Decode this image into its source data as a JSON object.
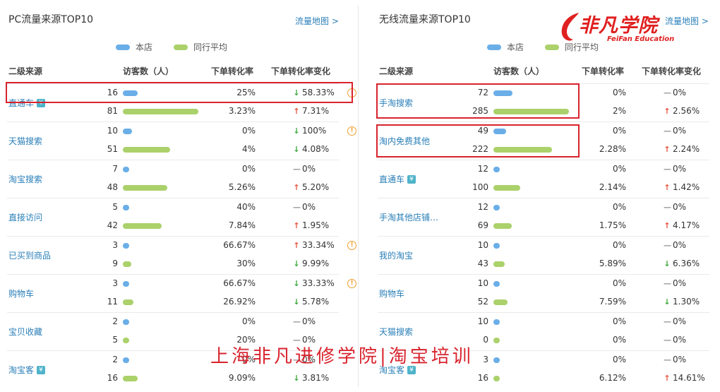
{
  "legend": {
    "store": "本店",
    "peer": "同行平均"
  },
  "headers": {
    "source": "二级来源",
    "visitors": "访客数（人）",
    "conv": "下单转化率",
    "conv_change": "下单转化率变化"
  },
  "map_link": "流量地图 >",
  "colors": {
    "store_bar": "#6aaee8",
    "peer_bar": "#abd16b",
    "highlight": "#d9232d",
    "link": "#2a7fb8",
    "down": "#3aa83a",
    "up": "#e8533f"
  },
  "pc": {
    "title": "PC流量来源TOP10",
    "rows": [
      {
        "label": "直通车",
        "yen": true,
        "store": {
          "visitors": "16",
          "conv": "25%",
          "dir": "down",
          "change": "58.33%",
          "warn": true
        },
        "peer": {
          "visitors": "81",
          "conv": "3.23%",
          "dir": "up",
          "change": "7.31%"
        }
      },
      {
        "label": "天猫搜索",
        "yen": false,
        "store": {
          "visitors": "10",
          "conv": "0%",
          "dir": "down",
          "change": "100%",
          "warn": true
        },
        "peer": {
          "visitors": "51",
          "conv": "4%",
          "dir": "down",
          "change": "4.08%"
        }
      },
      {
        "label": "淘宝搜索",
        "yen": false,
        "store": {
          "visitors": "7",
          "conv": "0%",
          "dir": "flat",
          "change": "0%",
          "warn": false
        },
        "peer": {
          "visitors": "48",
          "conv": "5.26%",
          "dir": "up",
          "change": "5.20%"
        }
      },
      {
        "label": "直接访问",
        "yen": false,
        "store": {
          "visitors": "5",
          "conv": "40%",
          "dir": "flat",
          "change": "0%",
          "warn": false
        },
        "peer": {
          "visitors": "42",
          "conv": "7.84%",
          "dir": "up",
          "change": "1.95%"
        }
      },
      {
        "label": "已买到商品",
        "yen": false,
        "store": {
          "visitors": "3",
          "conv": "66.67%",
          "dir": "up",
          "change": "33.34%",
          "warn": true
        },
        "peer": {
          "visitors": "9",
          "conv": "30%",
          "dir": "down",
          "change": "9.99%"
        }
      },
      {
        "label": "购物车",
        "yen": false,
        "store": {
          "visitors": "3",
          "conv": "66.67%",
          "dir": "down",
          "change": "33.33%",
          "warn": true
        },
        "peer": {
          "visitors": "11",
          "conv": "26.92%",
          "dir": "down",
          "change": "5.78%"
        }
      },
      {
        "label": "宝贝收藏",
        "yen": false,
        "store": {
          "visitors": "2",
          "conv": "0%",
          "dir": "flat",
          "change": "0%",
          "warn": false
        },
        "peer": {
          "visitors": "5",
          "conv": "20%",
          "dir": "flat",
          "change": "0%"
        }
      },
      {
        "label": "淘宝客",
        "yen": true,
        "store": {
          "visitors": "2",
          "conv": "0%",
          "dir": "flat",
          "change": "0%",
          "warn": false
        },
        "peer": {
          "visitors": "16",
          "conv": "9.09%",
          "dir": "down",
          "change": "3.81%"
        }
      }
    ]
  },
  "mobile": {
    "title": "无线流量来源TOP10",
    "rows": [
      {
        "label": "手淘搜索",
        "yen": false,
        "store": {
          "visitors": "72",
          "conv": "0%",
          "dir": "flat",
          "change": "0%",
          "warn": false
        },
        "peer": {
          "visitors": "285",
          "conv": "2%",
          "dir": "up",
          "change": "2.56%"
        }
      },
      {
        "label": "淘内免费其他",
        "yen": false,
        "store": {
          "visitors": "49",
          "conv": "0%",
          "dir": "flat",
          "change": "0%",
          "warn": false
        },
        "peer": {
          "visitors": "222",
          "conv": "2.28%",
          "dir": "up",
          "change": "2.24%"
        }
      },
      {
        "label": "直通车",
        "yen": true,
        "store": {
          "visitors": "12",
          "conv": "0%",
          "dir": "flat",
          "change": "0%",
          "warn": false
        },
        "peer": {
          "visitors": "100",
          "conv": "2.14%",
          "dir": "up",
          "change": "1.42%"
        }
      },
      {
        "label": "手淘其他店铺…",
        "yen": false,
        "store": {
          "visitors": "12",
          "conv": "0%",
          "dir": "flat",
          "change": "0%",
          "warn": false
        },
        "peer": {
          "visitors": "69",
          "conv": "1.75%",
          "dir": "up",
          "change": "4.17%"
        }
      },
      {
        "label": "我的淘宝",
        "yen": false,
        "store": {
          "visitors": "10",
          "conv": "0%",
          "dir": "flat",
          "change": "0%",
          "warn": false
        },
        "peer": {
          "visitors": "43",
          "conv": "5.89%",
          "dir": "down",
          "change": "6.36%"
        }
      },
      {
        "label": "购物车",
        "yen": false,
        "store": {
          "visitors": "10",
          "conv": "0%",
          "dir": "flat",
          "change": "0%",
          "warn": false
        },
        "peer": {
          "visitors": "52",
          "conv": "7.59%",
          "dir": "down",
          "change": "1.30%"
        }
      },
      {
        "label": "天猫搜索",
        "yen": false,
        "store": {
          "visitors": "10",
          "conv": "0%",
          "dir": "flat",
          "change": "0%",
          "warn": false
        },
        "peer": {
          "visitors": "0",
          "conv": "0%",
          "dir": "flat",
          "change": "0%"
        }
      },
      {
        "label": "淘宝客",
        "yen": true,
        "store": {
          "visitors": "3",
          "conv": "0%",
          "dir": "flat",
          "change": "0%",
          "warn": false
        },
        "peer": {
          "visitors": "16",
          "conv": "6.12%",
          "dir": "up",
          "change": "14.61%"
        }
      }
    ]
  },
  "logo": {
    "cn": "非凡学院",
    "en": "FeiFan Education"
  },
  "watermark": "上海非凡进修学院|淘宝培训"
}
